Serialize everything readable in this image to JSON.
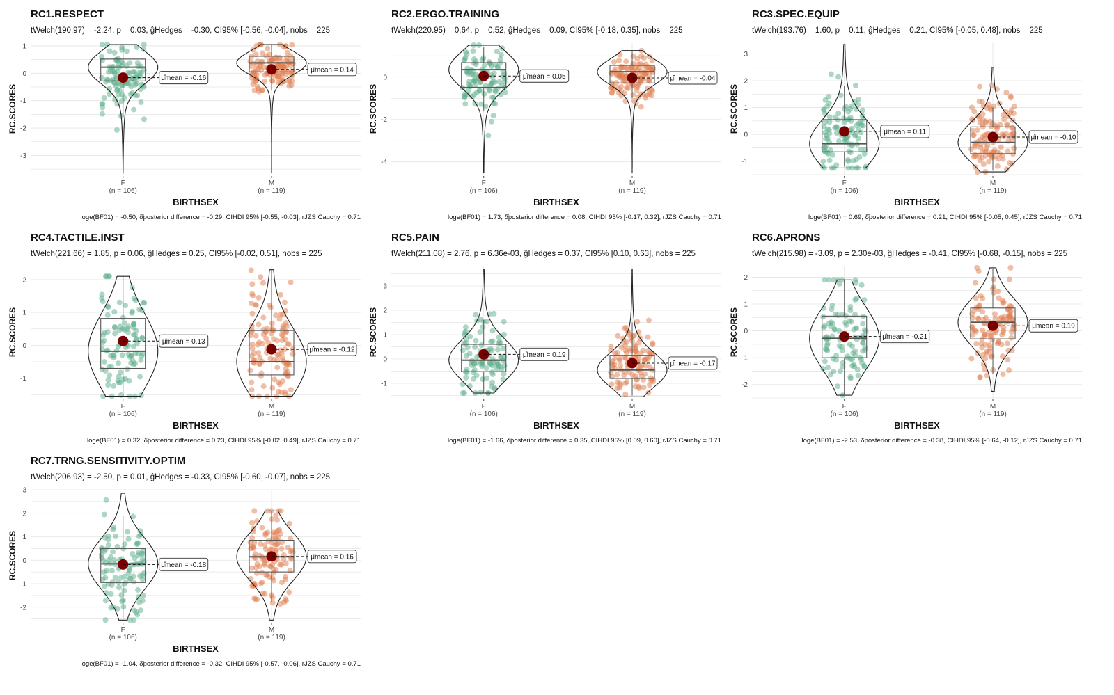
{
  "colors": {
    "female": "#5eae8c",
    "male": "#e07e4f",
    "mean_point": "#7a0000",
    "grid": "#e4e4e4",
    "outline": "#222222"
  },
  "chart_data": [
    {
      "type": "violin-box-scatter",
      "title": "RC1.RESPECT",
      "subtitle": "tWelch(190.97) = -2.24, p = 0.03, ĝHedges = -0.30, CI95% [-0.56, -0.04], nobs = 225",
      "caption": "loge(BF01) = -0.50, δ̂posterior difference = -0.29, CIHDI 95% [-0.55, -0.03], rJZS Cauchy = 0.71",
      "xlabel": "BIRTHSEX",
      "ylabel": "RC.SCORES",
      "ylim": [
        -3.7,
        1.1
      ],
      "yticks": [
        -3,
        -2,
        -1,
        0,
        1
      ],
      "grid": true,
      "groups": [
        {
          "label": "F",
          "n_label": "(n = 106)",
          "n": 106,
          "mean": -0.16,
          "mean_label": "μ̂mean = -0.16",
          "q1": -0.28,
          "median": 0.22,
          "q3": 0.52,
          "whisker_low": -1.6,
          "whisker_high": 1.05,
          "min": -3.65,
          "max": 1.05
        },
        {
          "label": "M",
          "n_label": "(n = 119)",
          "n": 119,
          "mean": 0.14,
          "mean_label": "μ̂mean = 0.14",
          "q1": 0.05,
          "median": 0.38,
          "q3": 0.62,
          "whisker_low": -0.6,
          "whisker_high": 1.05,
          "min": -3.65,
          "max": 1.05
        }
      ]
    },
    {
      "type": "violin-box-scatter",
      "title": "RC2.ERGO.TRAINING",
      "subtitle": "tWelch(220.95) = 0.64, p = 0.52, ĝHedges = 0.09, CI95% [-0.18, 0.35], nobs = 225",
      "caption": "loge(BF01) = 1.73, δ̂posterior difference = 0.08, CIHDI 95% [-0.17, 0.32], rJZS Cauchy = 0.71",
      "xlabel": "BIRTHSEX",
      "ylabel": "RC.SCORES",
      "ylim": [
        -4.6,
        1.6
      ],
      "yticks": [
        -4,
        -2,
        0
      ],
      "grid": true,
      "groups": [
        {
          "label": "F",
          "n_label": "(n = 106)",
          "n": 106,
          "mean": 0.05,
          "mean_label": "μ̂mean = 0.05",
          "q1": -0.48,
          "median": 0.35,
          "q3": 0.68,
          "whisker_low": -1.6,
          "whisker_high": 1.4,
          "min": -4.5,
          "max": 1.5
        },
        {
          "label": "M",
          "n_label": "(n = 119)",
          "n": 119,
          "mean": -0.04,
          "mean_label": "μ̂mean = -0.04",
          "q1": -0.28,
          "median": 0.25,
          "q3": 0.55,
          "whisker_low": -1.0,
          "whisker_high": 1.2,
          "min": -4.5,
          "max": 1.25
        }
      ]
    },
    {
      "type": "violin-box-scatter",
      "title": "RC3.SPEC.EQUIP",
      "subtitle": "tWelch(193.76) = 1.60, p = 0.11, ĝHedges = 0.21, CI95% [-0.05, 0.48], nobs = 225",
      "caption": "loge(BF01) = 0.69, δ̂posterior difference = 0.21, CIHDI 95% [-0.05, 0.45], rJZS Cauchy = 0.71",
      "xlabel": "BIRTHSEX",
      "ylabel": "RC.SCORES",
      "ylim": [
        -1.5,
        3.4
      ],
      "yticks": [
        -1,
        0,
        1,
        2,
        3
      ],
      "grid": true,
      "groups": [
        {
          "label": "F",
          "n_label": "(n = 106)",
          "n": 106,
          "mean": 0.11,
          "mean_label": "μ̂mean = 0.11",
          "q1": -0.65,
          "median": -0.35,
          "q3": 0.55,
          "whisker_low": -1.2,
          "whisker_high": 1.8,
          "min": -1.25,
          "max": 3.35
        },
        {
          "label": "M",
          "n_label": "(n = 119)",
          "n": 119,
          "mean": -0.1,
          "mean_label": "μ̂mean = -0.10",
          "q1": -0.72,
          "median": -0.3,
          "q3": 0.28,
          "whisker_low": -1.35,
          "whisker_high": 1.0,
          "min": -1.4,
          "max": 2.5
        }
      ]
    },
    {
      "type": "violin-box-scatter",
      "title": "RC4.TACTILE.INST",
      "subtitle": "tWelch(221.66) = 1.85, p = 0.06, ĝHedges = 0.25, CI95% [-0.02, 0.51], nobs = 225",
      "caption": "loge(BF01) = 0.32, δ̂posterior difference = 0.23, CIHDI 95% [-0.02, 0.49], rJZS Cauchy = 0.71",
      "xlabel": "BIRTHSEX",
      "ylabel": "RC.SCORES",
      "ylim": [
        -1.6,
        2.4
      ],
      "yticks": [
        -1,
        0,
        1,
        2
      ],
      "grid": true,
      "groups": [
        {
          "label": "F",
          "n_label": "(n = 106)",
          "n": 106,
          "mean": 0.13,
          "mean_label": "μ̂mean = 0.13",
          "q1": -0.7,
          "median": -0.18,
          "q3": 0.82,
          "whisker_low": -1.55,
          "whisker_high": 2.1,
          "min": -1.55,
          "max": 2.1
        },
        {
          "label": "M",
          "n_label": "(n = 119)",
          "n": 119,
          "mean": -0.12,
          "mean_label": "μ̂mean = -0.12",
          "q1": -0.9,
          "median": -0.5,
          "q3": 0.45,
          "whisker_low": -1.55,
          "whisker_high": 2.3,
          "min": -1.55,
          "max": 2.3
        }
      ]
    },
    {
      "type": "violin-box-scatter",
      "title": "RC5.PAIN",
      "subtitle": "tWelch(211.08) = 2.76, p = 6.36e-03, ĝHedges = 0.37, CI95% [0.10, 0.63], nobs = 225",
      "caption": "loge(BF01) = -1.66, δ̂posterior difference = 0.35, CIHDI 95% [0.09, 0.60], rJZS Cauchy = 0.71",
      "xlabel": "BIRTHSEX",
      "ylabel": "RC.SCORES",
      "ylim": [
        -1.6,
        3.8
      ],
      "yticks": [
        -1,
        0,
        1,
        2,
        3
      ],
      "grid": true,
      "groups": [
        {
          "label": "F",
          "n_label": "(n = 106)",
          "n": 106,
          "mean": 0.19,
          "mean_label": "μ̂mean = 0.19",
          "q1": -0.52,
          "median": -0.05,
          "q3": 0.6,
          "whisker_low": -1.4,
          "whisker_high": 1.6,
          "min": -1.4,
          "max": 3.7
        },
        {
          "label": "M",
          "n_label": "(n = 119)",
          "n": 119,
          "mean": -0.17,
          "mean_label": "μ̂mean = -0.17",
          "q1": -0.8,
          "median": -0.45,
          "q3": 0.15,
          "whisker_low": -1.5,
          "whisker_high": 1.5,
          "min": -1.55,
          "max": 3.7
        }
      ]
    },
    {
      "type": "violin-box-scatter",
      "title": "RC6.APRONS",
      "subtitle": "tWelch(215.98) = -3.09, p = 2.30e-03, ĝHedges = -0.41, CI95% [-0.68, -0.15], nobs = 225",
      "caption": "loge(BF01) = -2.53, δ̂posterior difference = -0.38, CIHDI 95% [-0.64, -0.12], rJZS Cauchy = 0.71",
      "xlabel": "BIRTHSEX",
      "ylabel": "RC.SCORES",
      "ylim": [
        -2.5,
        2.4
      ],
      "yticks": [
        -2,
        -1,
        0,
        1,
        2
      ],
      "grid": true,
      "groups": [
        {
          "label": "F",
          "n_label": "(n = 106)",
          "n": 106,
          "mean": -0.21,
          "mean_label": "μ̂mean = -0.21",
          "q1": -1.0,
          "median": -0.28,
          "q3": 0.55,
          "whisker_low": -2.35,
          "whisker_high": 1.9,
          "min": -2.4,
          "max": 1.9
        },
        {
          "label": "M",
          "n_label": "(n = 119)",
          "n": 119,
          "mean": 0.19,
          "mean_label": "μ̂mean = 0.19",
          "q1": -0.3,
          "median": 0.32,
          "q3": 0.85,
          "whisker_low": -1.6,
          "whisker_high": 2.3,
          "min": -2.25,
          "max": 2.35
        }
      ]
    },
    {
      "type": "violin-box-scatter",
      "title": "RC7.TRNG.SENSITIVITY.OPTIM",
      "subtitle": "tWelch(206.93) = -2.50, p = 0.01, ĝHedges = -0.33, CI95% [-0.60, -0.07], nobs = 225",
      "caption": "loge(BF01) = -1.04, δ̂posterior difference = -0.32, CIHDI 95% [-0.57, -0.06], rJZS Cauchy = 0.71",
      "xlabel": "BIRTHSEX",
      "ylabel": "RC.SCORES",
      "ylim": [
        -2.6,
        3.0
      ],
      "yticks": [
        -2,
        -1,
        0,
        1,
        2,
        3
      ],
      "grid": true,
      "groups": [
        {
          "label": "F",
          "n_label": "(n = 106)",
          "n": 106,
          "mean": -0.18,
          "mean_label": "μ̂mean = -0.18",
          "q1": -0.95,
          "median": -0.15,
          "q3": 0.5,
          "whisker_low": -2.5,
          "whisker_high": 1.9,
          "min": -2.55,
          "max": 2.85
        },
        {
          "label": "M",
          "n_label": "(n = 119)",
          "n": 119,
          "mean": 0.16,
          "mean_label": "μ̂mean = 0.16",
          "q1": -0.5,
          "median": 0.15,
          "q3": 0.85,
          "whisker_low": -1.8,
          "whisker_high": 2.1,
          "min": -2.55,
          "max": 2.1
        }
      ]
    }
  ]
}
